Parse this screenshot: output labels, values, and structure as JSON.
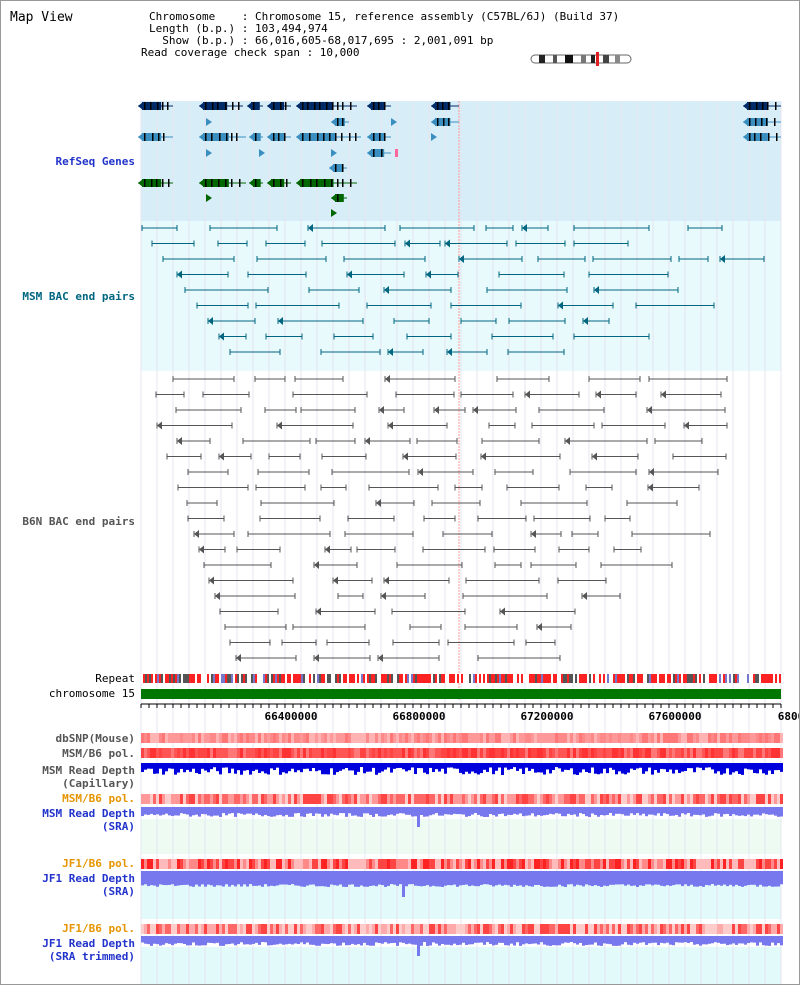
{
  "view_title": "Map View",
  "info": {
    "chromosome": "Chromosome    : Chromosome 15, reference assembly (C57BL/6J) (Build 37)",
    "length": "Length (b.p.) : 103,494,974",
    "show": "  Show (b.p.) : 66,016,605-68,017,695 : 2,001,091 bp",
    "read_check": "Read coverage check span : 10,000"
  },
  "tracks": {
    "refseq": "RefSeq Genes",
    "msm_bac": "MSM BAC end pairs",
    "b6n_bac": "B6N BAC end pairs",
    "repeat": "Repeat",
    "chromosome": "chromosome 15",
    "dbsnp": "dbSNP(Mouse)",
    "msm_b6_pol": "MSM/B6 pol.",
    "msm_depth_cap": "MSM Read Depth\n(Capillary)",
    "msm_b6_pol_2": "MSM/B6 pol.",
    "msm_depth_sra": "MSM Read Depth\n(SRA)",
    "jf1_b6_pol": "JF1/B6 pol.",
    "jf1_depth_sra": "JF1 Read Depth\n(SRA)",
    "jf1_b6_pol_2": "JF1/B6 pol.",
    "jf1_depth_trim": "JF1 Read Depth\n(SRA trimmed)"
  },
  "axis": {
    "ticks": [
      "66400000",
      "66800000",
      "67200000",
      "67600000",
      "6800"
    ]
  },
  "colors": {
    "gene_dark": "#002b66",
    "gene_mid": "#3b8fc0",
    "gene_green": "#006600",
    "msm_bac": "#006680",
    "b6n_bac": "#555555",
    "pol_red": "#ff3333",
    "depth_blue": "#0000dd",
    "depth_violet": "#7777ee"
  }
}
